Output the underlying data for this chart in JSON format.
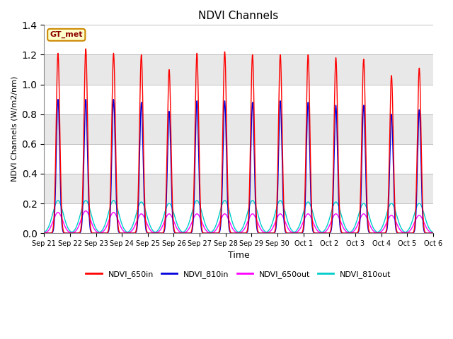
{
  "title": "NDVI Channels",
  "xlabel": "Time",
  "ylabel": "NDVI Channels (W/m2/nm)",
  "ylim": [
    0,
    1.4
  ],
  "figsize": [
    6.4,
    4.8
  ],
  "dpi": 100,
  "tick_labels": [
    "Sep 21",
    "Sep 22",
    "Sep 23",
    "Sep 24",
    "Sep 25",
    "Sep 26",
    "Sep 27",
    "Sep 28",
    "Sep 29",
    "Sep 30",
    "Oct 1",
    "Oct 2",
    "Oct 3",
    "Oct 4",
    "Oct 5",
    "Oct 6"
  ],
  "series": {
    "NDVI_650in": {
      "color": "#ff0000",
      "linewidth": 1.0
    },
    "NDVI_810in": {
      "color": "#0000dd",
      "linewidth": 1.0
    },
    "NDVI_650out": {
      "color": "#ff00ff",
      "linewidth": 1.0
    },
    "NDVI_810out": {
      "color": "#00cccc",
      "linewidth": 1.0
    }
  },
  "peaks_650in": [
    1.21,
    1.24,
    1.21,
    1.2,
    1.1,
    1.21,
    1.22,
    1.2,
    1.2,
    1.2,
    1.18,
    1.17,
    1.06,
    1.11
  ],
  "peaks_810in": [
    0.9,
    0.9,
    0.9,
    0.88,
    0.82,
    0.89,
    0.89,
    0.88,
    0.89,
    0.88,
    0.86,
    0.86,
    0.8,
    0.83
  ],
  "peaks_650out": [
    0.14,
    0.15,
    0.14,
    0.13,
    0.13,
    0.13,
    0.13,
    0.13,
    0.13,
    0.13,
    0.13,
    0.13,
    0.12,
    0.12
  ],
  "peaks_810out": [
    0.22,
    0.22,
    0.22,
    0.21,
    0.2,
    0.22,
    0.22,
    0.22,
    0.22,
    0.21,
    0.21,
    0.2,
    0.2,
    0.2
  ],
  "n_peaks": 14,
  "total_days": 15.0,
  "legend_label": "GT_met",
  "yticks": [
    0.0,
    0.2,
    0.4,
    0.6,
    0.8,
    1.0,
    1.2,
    1.4
  ],
  "grid_colors": [
    "#ffffff",
    "#e8e8e8"
  ],
  "bg_color": "#d8d8d8"
}
